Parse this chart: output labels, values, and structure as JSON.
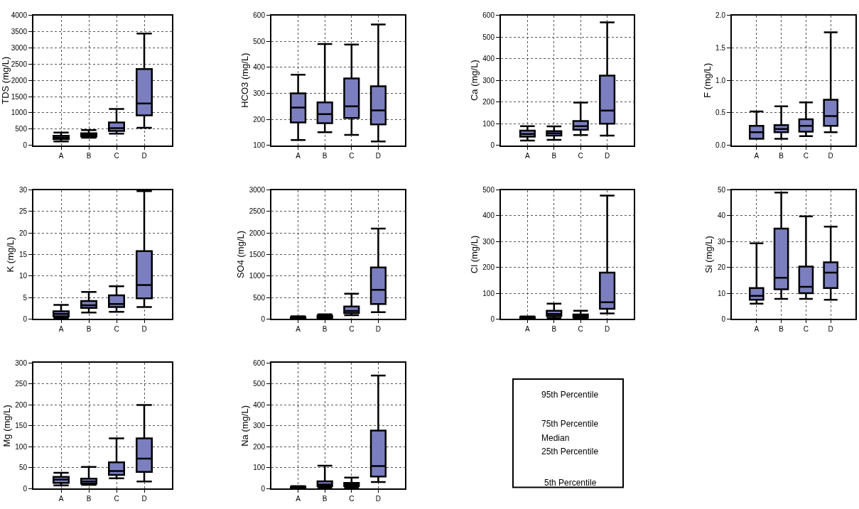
{
  "chart_data": [
    {
      "type": "box",
      "categories": [
        "A",
        "B",
        "C",
        "D"
      ],
      "ylabel": "TDS (mg/L)",
      "ylim": [
        0,
        4000
      ],
      "yticks": [
        0,
        500,
        1000,
        1500,
        2000,
        2500,
        3000,
        3500,
        4000
      ],
      "grid": true,
      "color": "#7b7fbf",
      "boxes": [
        {
          "low": 120,
          "q1": 190,
          "median": 230,
          "q3": 290,
          "high": 390
        },
        {
          "low": 230,
          "q1": 270,
          "median": 320,
          "q3": 370,
          "high": 470
        },
        {
          "low": 360,
          "q1": 440,
          "median": 530,
          "q3": 700,
          "high": 1120
        },
        {
          "low": 540,
          "q1": 920,
          "median": 1290,
          "q3": 2350,
          "high": 3440
        }
      ]
    },
    {
      "type": "box",
      "categories": [
        "A",
        "B",
        "C",
        "D"
      ],
      "ylabel": "HCO3 (mg/L)",
      "ylim": [
        100,
        600
      ],
      "yticks": [
        100,
        200,
        300,
        400,
        500,
        600
      ],
      "grid": true,
      "color": "#7b7fbf",
      "boxes": [
        {
          "low": 120,
          "q1": 188,
          "median": 245,
          "q3": 300,
          "high": 372
        },
        {
          "low": 150,
          "q1": 185,
          "median": 220,
          "q3": 265,
          "high": 490
        },
        {
          "low": 140,
          "q1": 205,
          "median": 250,
          "q3": 357,
          "high": 488
        },
        {
          "low": 115,
          "q1": 180,
          "median": 234,
          "q3": 327,
          "high": 565
        }
      ]
    },
    {
      "type": "box",
      "categories": [
        "A",
        "B",
        "C",
        "D"
      ],
      "ylabel": "Ca (mg/L)",
      "ylim": [
        0,
        600
      ],
      "yticks": [
        0,
        100,
        200,
        300,
        400,
        500,
        600
      ],
      "grid": true,
      "color": "#7b7fbf",
      "boxes": [
        {
          "low": 22,
          "q1": 40,
          "median": 52,
          "q3": 68,
          "high": 88
        },
        {
          "low": 25,
          "q1": 45,
          "median": 55,
          "q3": 65,
          "high": 87
        },
        {
          "low": 47,
          "q1": 72,
          "median": 88,
          "q3": 112,
          "high": 197
        },
        {
          "low": 45,
          "q1": 100,
          "median": 160,
          "q3": 322,
          "high": 568
        }
      ]
    },
    {
      "type": "box",
      "categories": [
        "A",
        "B",
        "C",
        "D"
      ],
      "ylabel": "F (mg/L)",
      "ylim": [
        0,
        2
      ],
      "yticks": [
        {
          "value": 0,
          "label": "0.0"
        },
        0.5,
        {
          "value": 1,
          "label": "1.0"
        },
        1.5,
        {
          "value": 2,
          "label": "2.0"
        }
      ],
      "grid": true,
      "color": "#7b7fbf",
      "boxes": [
        {
          "low": 0.1,
          "q1": 0.1,
          "median": 0.2,
          "q3": 0.3,
          "high": 0.52
        },
        {
          "low": 0.1,
          "q1": 0.2,
          "median": 0.25,
          "q3": 0.31,
          "high": 0.6
        },
        {
          "low": 0.14,
          "q1": 0.21,
          "median": 0.3,
          "q3": 0.4,
          "high": 0.66
        },
        {
          "low": 0.2,
          "q1": 0.3,
          "median": 0.45,
          "q3": 0.7,
          "high": 1.74
        }
      ]
    },
    {
      "type": "box",
      "categories": [
        "A",
        "B",
        "C",
        "D"
      ],
      "ylabel": "K (mg/L)",
      "ylim": [
        0,
        30
      ],
      "yticks": [
        0,
        5,
        10,
        15,
        20,
        25,
        30
      ],
      "grid": true,
      "color": "#7b7fbf",
      "boxes": [
        {
          "low": 0.3,
          "q1": 0.6,
          "median": 1.2,
          "q3": 1.8,
          "high": 3.3
        },
        {
          "low": 1.5,
          "q1": 2.6,
          "median": 3.2,
          "q3": 4.2,
          "high": 6.3
        },
        {
          "low": 1.7,
          "q1": 2.8,
          "median": 3.5,
          "q3": 5.5,
          "high": 7.6
        },
        {
          "low": 2.8,
          "q1": 4.8,
          "median": 7.9,
          "q3": 15.8,
          "high": 29.7
        }
      ]
    },
    {
      "type": "box",
      "categories": [
        "A",
        "B",
        "C",
        "D"
      ],
      "ylabel": "SO4 (mg/L)",
      "ylim": [
        0,
        3000
      ],
      "yticks": [
        0,
        500,
        1000,
        1500,
        2000,
        2500,
        3000
      ],
      "grid": true,
      "color": "#7b7fbf",
      "boxes": [
        {
          "low": 5,
          "q1": 15,
          "median": 30,
          "q3": 45,
          "high": 65
        },
        {
          "low": 10,
          "q1": 25,
          "median": 50,
          "q3": 80,
          "high": 110
        },
        {
          "low": 90,
          "q1": 140,
          "median": 190,
          "q3": 290,
          "high": 590
        },
        {
          "low": 160,
          "q1": 350,
          "median": 680,
          "q3": 1200,
          "high": 2100
        }
      ]
    },
    {
      "type": "box",
      "categories": [
        "A",
        "B",
        "C",
        "D"
      ],
      "ylabel": "Cl (mg/L)",
      "ylim": [
        0,
        500
      ],
      "yticks": [
        0,
        100,
        200,
        300,
        400,
        500
      ],
      "grid": true,
      "color": "#7b7fbf",
      "boxes": [
        {
          "low": 2,
          "q1": 4,
          "median": 6,
          "q3": 8,
          "high": 10
        },
        {
          "low": 5,
          "q1": 12,
          "median": 20,
          "q3": 32,
          "high": 60
        },
        {
          "low": 3,
          "q1": 6,
          "median": 12,
          "q3": 18,
          "high": 32
        },
        {
          "low": 22,
          "q1": 40,
          "median": 65,
          "q3": 180,
          "high": 478
        }
      ]
    },
    {
      "type": "box",
      "categories": [
        "A",
        "B",
        "C",
        "D"
      ],
      "ylabel": "Si (mg/L)",
      "ylim": [
        0,
        50
      ],
      "yticks": [
        0,
        10,
        20,
        30,
        40,
        50
      ],
      "grid": true,
      "color": "#7b7fbf",
      "boxes": [
        {
          "low": 6,
          "q1": 7.5,
          "median": 9,
          "q3": 12,
          "high": 29.3
        },
        {
          "low": 7.8,
          "q1": 11.5,
          "median": 16,
          "q3": 35,
          "high": 49
        },
        {
          "low": 7.8,
          "q1": 10,
          "median": 12.5,
          "q3": 20.3,
          "high": 39.8
        },
        {
          "low": 7.5,
          "q1": 12,
          "median": 18,
          "q3": 22,
          "high": 35.8
        }
      ]
    },
    {
      "type": "box",
      "categories": [
        "A",
        "B",
        "C",
        "D"
      ],
      "ylabel": "Mg (mg/L)",
      "ylim": [
        0,
        300
      ],
      "yticks": [
        0,
        50,
        100,
        150,
        200,
        250,
        300
      ],
      "grid": true,
      "color": "#7b7fbf",
      "boxes": [
        {
          "low": 8,
          "q1": 14,
          "median": 22,
          "q3": 28,
          "high": 38
        },
        {
          "low": 9,
          "q1": 12,
          "median": 17,
          "q3": 24,
          "high": 52
        },
        {
          "low": 25,
          "q1": 33,
          "median": 42,
          "q3": 63,
          "high": 120
        },
        {
          "low": 17,
          "q1": 40,
          "median": 72,
          "q3": 120,
          "high": 200
        }
      ]
    },
    {
      "type": "box",
      "categories": [
        "A",
        "B",
        "C",
        "D"
      ],
      "ylabel": "Na (mg/L)",
      "ylim": [
        0,
        600
      ],
      "yticks": [
        0,
        100,
        200,
        300,
        400,
        500,
        600
      ],
      "grid": true,
      "color": "#7b7fbf",
      "boxes": [
        {
          "low": 1,
          "q1": 3,
          "median": 6,
          "q3": 9,
          "high": 12
        },
        {
          "low": 5,
          "q1": 12,
          "median": 20,
          "q3": 35,
          "high": 110
        },
        {
          "low": 5,
          "q1": 12,
          "median": 20,
          "q3": 28,
          "high": 53
        },
        {
          "low": 32,
          "q1": 58,
          "median": 108,
          "q3": 278,
          "high": 540
        }
      ]
    },
    {
      "type": "other",
      "annotations": [
        "95th Percentile",
        "75th Percentile",
        "Median",
        "25th Percentile",
        "5th Percentile"
      ]
    }
  ]
}
